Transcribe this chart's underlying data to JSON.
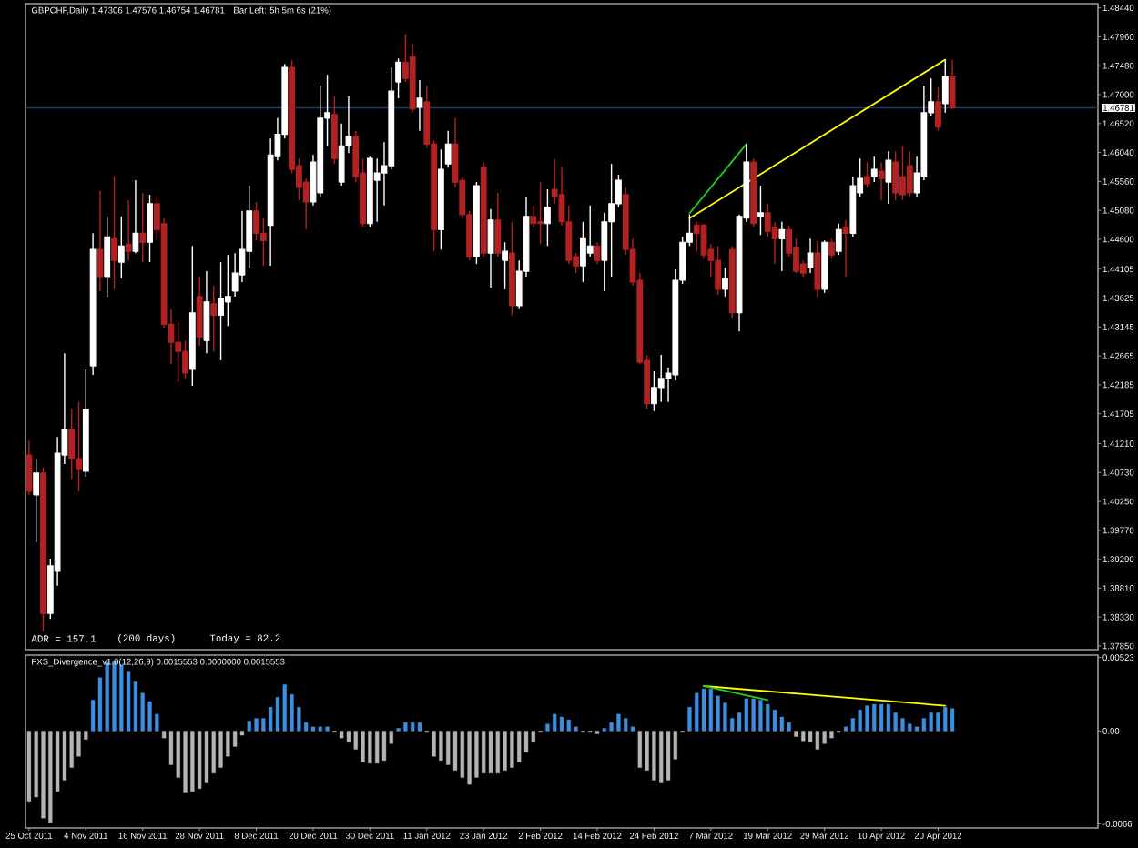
{
  "chart_data": [
    {
      "type": "candlestick",
      "title": "GBPCHF,Daily 1.47306 1.47576 1.46754 1.46781",
      "annotations": [
        "Bar Left: 5h 5m 6s (21%)",
        "ADR = 157.1",
        "(200 days)",
        "Today = 82.2"
      ],
      "categories": [
        null,
        null,
        null,
        null,
        null,
        null,
        null,
        null,
        null,
        null,
        null,
        null,
        null,
        null,
        null,
        null,
        null,
        null,
        null,
        null,
        null,
        null,
        null,
        null,
        null,
        null,
        null,
        null,
        null,
        null,
        null,
        null,
        null,
        null,
        null,
        null,
        null,
        null,
        null,
        null,
        null,
        null,
        null,
        null,
        null,
        null,
        null,
        null,
        null,
        null,
        null,
        null,
        null,
        null,
        null,
        null,
        null,
        null,
        null,
        null,
        null,
        null,
        null,
        null,
        null,
        null,
        null,
        null,
        null,
        null,
        null,
        null,
        null,
        null,
        null,
        null,
        null,
        null,
        null,
        null,
        null,
        null,
        null,
        null,
        null,
        null,
        null,
        null,
        null,
        null,
        null,
        null,
        null,
        null,
        null,
        null,
        null,
        null,
        null,
        null,
        null,
        null,
        null,
        null,
        null,
        null,
        null,
        null,
        null,
        null,
        null,
        null,
        null,
        null,
        null,
        null,
        null,
        null,
        null,
        null,
        null,
        null,
        null,
        null,
        null,
        null,
        null,
        null,
        null,
        null,
        null,
        null,
        null,
        null,
        null,
        null,
        null,
        null,
        null,
        null,
        null,
        null,
        null,
        null,
        null,
        null,
        null,
        null,
        null,
        null,
        null
      ],
      "ohlc": [
        [
          1.4102,
          1.4126,
          1.4036,
          1.4042
        ],
        [
          1.4036,
          1.4096,
          1.3957,
          1.4072
        ],
        [
          1.4072,
          1.4081,
          1.3809,
          1.3839
        ],
        [
          1.3839,
          1.393,
          1.383,
          1.3918
        ],
        [
          1.3909,
          1.4132,
          1.3885,
          1.4105
        ],
        [
          1.4102,
          1.4271,
          1.4087,
          1.4144
        ],
        [
          1.4144,
          1.4178,
          1.4063,
          1.4096
        ],
        [
          1.4096,
          1.419,
          1.4042,
          1.4078
        ],
        [
          1.4075,
          1.4244,
          1.4066,
          1.4178
        ],
        [
          1.425,
          1.447,
          1.4235,
          1.4443
        ],
        [
          1.4443,
          1.454,
          1.4374,
          1.4398
        ],
        [
          1.4398,
          1.4498,
          1.4365,
          1.4464
        ],
        [
          1.4461,
          1.4564,
          1.4377,
          1.4425
        ],
        [
          1.4422,
          1.4498,
          1.4395,
          1.4449
        ],
        [
          1.4452,
          1.4525,
          1.4425,
          1.444
        ],
        [
          1.444,
          1.4558,
          1.4437,
          1.447
        ],
        [
          1.447,
          1.4537,
          1.4422,
          1.4455
        ],
        [
          1.4455,
          1.4534,
          1.4422,
          1.4519
        ],
        [
          1.4519,
          1.4531,
          1.4458,
          1.4476
        ],
        [
          1.4486,
          1.4495,
          1.4313,
          1.4319
        ],
        [
          1.4319,
          1.4344,
          1.4253,
          1.4289
        ],
        [
          1.4289,
          1.4323,
          1.4223,
          1.4274
        ],
        [
          1.4274,
          1.4292,
          1.4229,
          1.4238
        ],
        [
          1.4244,
          1.4449,
          1.4217,
          1.4338
        ],
        [
          1.4365,
          1.4398,
          1.4283,
          1.4298
        ],
        [
          1.4292,
          1.4407,
          1.4271,
          1.4356
        ],
        [
          1.4353,
          1.4383,
          1.4274,
          1.4334
        ],
        [
          1.4334,
          1.4422,
          1.4259,
          1.4362
        ],
        [
          1.4356,
          1.4434,
          1.4316,
          1.4365
        ],
        [
          1.4374,
          1.4437,
          1.4365,
          1.4404
        ],
        [
          1.4401,
          1.4507,
          1.4389,
          1.4443
        ],
        [
          1.444,
          1.4549,
          1.4413,
          1.4507
        ],
        [
          1.4507,
          1.4522,
          1.4458,
          1.447
        ],
        [
          1.447,
          1.4495,
          1.4416,
          1.4458
        ],
        [
          1.4483,
          1.4627,
          1.4416,
          1.46
        ],
        [
          1.4597,
          1.4661,
          1.4591,
          1.4634
        ],
        [
          1.4634,
          1.4751,
          1.4627,
          1.4745
        ],
        [
          1.4745,
          1.4757,
          1.457,
          1.4576
        ],
        [
          1.4582,
          1.4594,
          1.4525,
          1.4546
        ],
        [
          1.4555,
          1.4561,
          1.4476,
          1.4522
        ],
        [
          1.4522,
          1.46,
          1.4516,
          1.4588
        ],
        [
          1.4537,
          1.4715,
          1.4531,
          1.4661
        ],
        [
          1.4661,
          1.4733,
          1.4615,
          1.467
        ],
        [
          1.4667,
          1.4697,
          1.4585,
          1.4594
        ],
        [
          1.4555,
          1.4652,
          1.4549,
          1.4615
        ],
        [
          1.4615,
          1.4697,
          1.4603,
          1.4631
        ],
        [
          1.4631,
          1.464,
          1.4555,
          1.4564
        ],
        [
          1.457,
          1.4594,
          1.448,
          1.4486
        ],
        [
          1.4486,
          1.4597,
          1.448,
          1.4594
        ],
        [
          1.4558,
          1.4594,
          1.4489,
          1.457
        ],
        [
          1.457,
          1.4621,
          1.4516,
          1.4582
        ],
        [
          1.4582,
          1.4745,
          1.4576,
          1.4706
        ],
        [
          1.4721,
          1.476,
          1.4694,
          1.4754
        ],
        [
          1.4754,
          1.48,
          1.4721,
          1.4727
        ],
        [
          1.4763,
          1.4785,
          1.467,
          1.4676
        ],
        [
          1.4679,
          1.4724,
          1.464,
          1.4694
        ],
        [
          1.4688,
          1.4715,
          1.4612,
          1.4618
        ],
        [
          1.4618,
          1.4624,
          1.444,
          1.4476
        ],
        [
          1.4476,
          1.4609,
          1.4443,
          1.4576
        ],
        [
          1.4585,
          1.464,
          1.4579,
          1.4618
        ],
        [
          1.4618,
          1.4661,
          1.4546,
          1.4555
        ],
        [
          1.4558,
          1.4564,
          1.4495,
          1.4501
        ],
        [
          1.4501,
          1.4507,
          1.4425,
          1.4431
        ],
        [
          1.4431,
          1.4555,
          1.4419,
          1.4549
        ],
        [
          1.4579,
          1.4588,
          1.4431,
          1.4437
        ],
        [
          1.4437,
          1.451,
          1.438,
          1.4492
        ],
        [
          1.4492,
          1.4537,
          1.4431,
          1.4437
        ],
        [
          1.4425,
          1.4455,
          1.4377,
          1.444
        ],
        [
          1.4437,
          1.4489,
          1.4334,
          1.435
        ],
        [
          1.435,
          1.4425,
          1.4344,
          1.4407
        ],
        [
          1.4407,
          1.4531,
          1.4398,
          1.4498
        ],
        [
          1.4498,
          1.4516,
          1.448,
          1.4486
        ],
        [
          1.4489,
          1.4555,
          1.4452,
          1.4486
        ],
        [
          1.4486,
          1.4543,
          1.4449,
          1.4513
        ],
        [
          1.4543,
          1.4594,
          1.4519,
          1.4531
        ],
        [
          1.4534,
          1.4579,
          1.4483,
          1.4489
        ],
        [
          1.4489,
          1.4516,
          1.4419,
          1.4425
        ],
        [
          1.4431,
          1.4437,
          1.4404,
          1.4416
        ],
        [
          1.4416,
          1.4489,
          1.4389,
          1.4461
        ],
        [
          1.4437,
          1.4516,
          1.4431,
          1.4449
        ],
        [
          1.4449,
          1.4455,
          1.4419,
          1.4425
        ],
        [
          1.4425,
          1.4504,
          1.4374,
          1.4489
        ],
        [
          1.4489,
          1.4585,
          1.4398,
          1.4519
        ],
        [
          1.4519,
          1.4567,
          1.4513,
          1.4558
        ],
        [
          1.4534,
          1.4546,
          1.4434,
          1.4443
        ],
        [
          1.4443,
          1.4461,
          1.4383,
          1.4389
        ],
        [
          1.4392,
          1.4404,
          1.4253,
          1.4256
        ],
        [
          1.4259,
          1.4268,
          1.4178,
          1.4187
        ],
        [
          1.4187,
          1.4241,
          1.4175,
          1.4214
        ],
        [
          1.4214,
          1.4268,
          1.419,
          1.4229
        ],
        [
          1.4229,
          1.4247,
          1.419,
          1.4238
        ],
        [
          1.4235,
          1.441,
          1.4226,
          1.4392
        ],
        [
          1.4392,
          1.4464,
          1.4386,
          1.4455
        ],
        [
          1.4455,
          1.4501,
          1.4449,
          1.447
        ],
        [
          1.4483,
          1.4489,
          1.444,
          1.447
        ],
        [
          1.4483,
          1.4486,
          1.4428,
          1.4434
        ],
        [
          1.4443,
          1.4452,
          1.4398,
          1.4425
        ],
        [
          1.4425,
          1.4449,
          1.4368,
          1.4377
        ],
        [
          1.4377,
          1.4413,
          1.4365,
          1.4395
        ],
        [
          1.4443,
          1.4449,
          1.4329,
          1.4338
        ],
        [
          1.4338,
          1.4501,
          1.4307,
          1.4498
        ],
        [
          1.4495,
          1.4618,
          1.4489,
          1.4588
        ],
        [
          1.4588,
          1.4594,
          1.448,
          1.4486
        ],
        [
          1.4498,
          1.4549,
          1.4467,
          1.4504
        ],
        [
          1.4504,
          1.4519,
          1.4464,
          1.4473
        ],
        [
          1.448,
          1.4489,
          1.4419,
          1.4461
        ],
        [
          1.4461,
          1.4489,
          1.4407,
          1.4476
        ],
        [
          1.4476,
          1.4483,
          1.4431,
          1.4437
        ],
        [
          1.4446,
          1.4461,
          1.4404,
          1.4407
        ],
        [
          1.4419,
          1.4425,
          1.4398,
          1.4404
        ],
        [
          1.4413,
          1.4461,
          1.4404,
          1.4437
        ],
        [
          1.4437,
          1.4458,
          1.4365,
          1.4377
        ],
        [
          1.4377,
          1.4458,
          1.4371,
          1.4455
        ],
        [
          1.4455,
          1.4461,
          1.4428,
          1.4434
        ],
        [
          1.444,
          1.4486,
          1.4434,
          1.4476
        ],
        [
          1.448,
          1.4492,
          1.4398,
          1.447
        ],
        [
          1.447,
          1.4564,
          1.4464,
          1.4549
        ],
        [
          1.4537,
          1.4594,
          1.4531,
          1.4561
        ],
        [
          1.4564,
          1.4588,
          1.4546,
          1.4552
        ],
        [
          1.4564,
          1.4597,
          1.4555,
          1.4576
        ],
        [
          1.4573,
          1.4588,
          1.4525,
          1.4561
        ],
        [
          1.4555,
          1.4606,
          1.4519,
          1.4591
        ],
        [
          1.4588,
          1.4606,
          1.4525,
          1.4537
        ],
        [
          1.4564,
          1.4615,
          1.4525,
          1.4534
        ],
        [
          1.4582,
          1.4606,
          1.4531,
          1.4537
        ],
        [
          1.4537,
          1.4597,
          1.4531,
          1.457
        ],
        [
          1.4564,
          1.4715,
          1.4558,
          1.467
        ],
        [
          1.467,
          1.4727,
          1.4664,
          1.4688
        ],
        [
          1.4688,
          1.4712,
          1.464,
          1.4646
        ],
        [
          1.4685,
          1.4757,
          1.467,
          1.473
        ],
        [
          1.47306,
          1.47576,
          1.46754,
          1.46781
        ],
        null,
        null,
        null,
        null,
        null,
        null,
        null,
        null,
        null,
        null,
        null,
        null,
        null,
        null,
        null,
        null,
        null,
        null,
        null,
        null
      ],
      "colors": [
        "#b22222",
        "#ffffff",
        "#b22222",
        "#ffffff",
        "#ffffff",
        "#ffffff",
        "#b22222",
        "#b22222",
        "#ffffff",
        "#ffffff",
        "#b22222",
        "#ffffff",
        "#b22222",
        "#ffffff",
        "#b22222",
        "#ffffff",
        "#b22222",
        "#ffffff",
        "#b22222",
        "#b22222",
        "#b22222",
        "#b22222",
        "#b22222",
        "#ffffff",
        "#b22222",
        "#ffffff",
        "#b22222",
        "#ffffff",
        "#ffffff",
        "#ffffff",
        "#ffffff",
        "#ffffff",
        "#b22222",
        "#b22222",
        "#ffffff",
        "#ffffff",
        "#ffffff",
        "#b22222",
        "#b22222",
        "#b22222",
        "#ffffff",
        "#ffffff",
        "#ffffff",
        "#b22222",
        "#ffffff",
        "#ffffff",
        "#b22222",
        "#b22222",
        "#ffffff",
        "#ffffff",
        "#ffffff",
        "#ffffff",
        "#ffffff",
        "#b22222",
        "#b22222",
        "#ffffff",
        "#b22222",
        "#b22222",
        "#ffffff",
        "#ffffff",
        "#b22222",
        "#b22222",
        "#b22222",
        "#ffffff",
        "#b22222",
        "#ffffff",
        "#b22222",
        "#ffffff",
        "#b22222",
        "#ffffff",
        "#ffffff",
        "#b22222",
        "#b22222",
        "#ffffff",
        "#b22222",
        "#b22222",
        "#b22222",
        "#b22222",
        "#ffffff",
        "#ffffff",
        "#b22222",
        "#ffffff",
        "#ffffff",
        "#ffffff",
        "#b22222",
        "#b22222",
        "#b22222",
        "#b22222",
        "#ffffff",
        "#ffffff",
        "#ffffff",
        "#ffffff",
        "#ffffff",
        "#ffffff",
        "#b22222",
        "#b22222",
        "#b22222",
        "#b22222",
        "#ffffff",
        "#b22222",
        "#ffffff",
        "#ffffff",
        "#b22222",
        "#ffffff",
        "#b22222",
        "#b22222",
        "#ffffff",
        "#b22222",
        "#b22222",
        "#b22222",
        "#ffffff",
        "#b22222",
        "#ffffff",
        "#b22222",
        "#ffffff",
        "#b22222",
        "#ffffff",
        "#ffffff",
        "#b22222",
        "#ffffff",
        "#b22222",
        "#ffffff",
        "#b22222",
        "#b22222",
        "#b22222",
        "#ffffff",
        "#ffffff",
        "#ffffff",
        "#b22222",
        "#ffffff",
        "#b22222",
        null,
        null,
        null,
        null,
        null,
        null,
        null,
        null,
        null,
        null,
        null,
        null,
        null,
        null,
        null,
        null,
        null,
        null,
        null,
        null
      ],
      "ylim": [
        1.3779,
        1.4851
      ],
      "yticks": [
        {
          "value": 1.4844,
          "label": "1.48440"
        },
        {
          "value": 1.4796,
          "label": "1.47960"
        },
        {
          "value": 1.4748,
          "label": "1.47480"
        },
        {
          "value": 1.47,
          "label": "1.47000"
        },
        {
          "value": 1.4652,
          "label": "1.46520"
        },
        {
          "value": 1.4604,
          "label": "1.46040"
        },
        {
          "value": 1.4556,
          "label": "1.45560"
        },
        {
          "value": 1.4508,
          "label": "1.45080"
        },
        {
          "value": 1.446,
          "label": "1.44600"
        },
        1.44105,
        1.43625,
        1.43145,
        1.42665,
        1.42185,
        1.41705,
        {
          "value": 1.4121,
          "label": "1.41210"
        },
        {
          "value": 1.4073,
          "label": "1.40730"
        },
        {
          "value": 1.4025,
          "label": "1.40250"
        },
        {
          "value": 1.3977,
          "label": "1.39770"
        },
        {
          "value": 1.3929,
          "label": "1.39290"
        },
        {
          "value": 1.3881,
          "label": "1.38810"
        },
        {
          "value": 1.3833,
          "label": "1.38330"
        },
        {
          "value": 1.3785,
          "label": "1.37850"
        }
      ],
      "tick_labels": "y",
      "ref_lines": [
        {
          "axis": "y",
          "value": 1.46781,
          "label": "1.46781",
          "color": "#1f3b6b"
        }
      ],
      "series": [
        {
          "type": "line",
          "color": "#ffff00",
          "values": [
            null,
            null,
            null,
            null,
            null,
            null,
            null,
            null,
            null,
            null,
            null,
            null,
            null,
            null,
            null,
            null,
            null,
            null,
            null,
            null,
            null,
            null,
            null,
            null,
            null,
            null,
            null,
            null,
            null,
            null,
            null,
            null,
            null,
            null,
            null,
            null,
            null,
            null,
            null,
            null,
            null,
            null,
            null,
            null,
            null,
            null,
            null,
            null,
            null,
            null,
            null,
            null,
            null,
            null,
            null,
            null,
            null,
            null,
            null,
            null,
            null,
            null,
            null,
            null,
            null,
            null,
            null,
            null,
            null,
            null,
            null,
            null,
            null,
            null,
            null,
            null,
            null,
            null,
            null,
            null,
            null,
            null,
            null,
            null,
            null,
            null,
            null,
            null,
            null,
            null,
            null,
            null,
            null,
            1.4495,
            null,
            null,
            null,
            null,
            null,
            null,
            null,
            null,
            null,
            null,
            null,
            null,
            null,
            null,
            null,
            null,
            null,
            null,
            null,
            null,
            null,
            null,
            null,
            null,
            null,
            null,
            null,
            null,
            null,
            null,
            null,
            null,
            null,
            null,
            null,
            1.4758,
            null,
            null,
            null,
            null,
            null,
            null,
            null,
            null,
            null,
            null,
            null,
            null,
            null,
            null,
            null,
            null,
            null,
            null,
            null,
            null,
            null
          ]
        },
        {
          "type": "line",
          "color": "#20d020",
          "values": [
            null,
            null,
            null,
            null,
            null,
            null,
            null,
            null,
            null,
            null,
            null,
            null,
            null,
            null,
            null,
            null,
            null,
            null,
            null,
            null,
            null,
            null,
            null,
            null,
            null,
            null,
            null,
            null,
            null,
            null,
            null,
            null,
            null,
            null,
            null,
            null,
            null,
            null,
            null,
            null,
            null,
            null,
            null,
            null,
            null,
            null,
            null,
            null,
            null,
            null,
            null,
            null,
            null,
            null,
            null,
            null,
            null,
            null,
            null,
            null,
            null,
            null,
            null,
            null,
            null,
            null,
            null,
            null,
            null,
            null,
            null,
            null,
            null,
            null,
            null,
            null,
            null,
            null,
            null,
            null,
            null,
            null,
            null,
            null,
            null,
            null,
            null,
            null,
            null,
            null,
            null,
            null,
            null,
            1.4503,
            null,
            null,
            null,
            null,
            null,
            null,
            null,
            1.4618,
            null,
            null,
            null,
            null,
            null,
            null,
            null,
            null,
            null,
            null,
            null,
            null,
            null,
            null,
            null,
            null,
            null,
            null,
            null,
            null,
            null,
            null,
            null,
            null,
            null,
            null,
            null,
            null,
            null,
            null,
            null,
            null,
            null,
            null,
            null,
            null,
            null,
            null,
            null,
            null,
            null,
            null,
            null,
            null,
            null,
            null,
            null,
            null,
            null
          ]
        }
      ]
    },
    {
      "type": "bar",
      "title": "FXS_Divergence_v1.0(12,26,9) 0.0015553 0.0000000 0.0015553",
      "categories": [
        "25 Oct 2011",
        null,
        null,
        null,
        null,
        null,
        null,
        null,
        "4 Nov 2011",
        null,
        null,
        null,
        null,
        null,
        null,
        null,
        "16 Nov 2011",
        null,
        null,
        null,
        null,
        null,
        null,
        null,
        "28 Nov 2011",
        null,
        null,
        null,
        null,
        null,
        null,
        null,
        "8 Dec 2011",
        null,
        null,
        null,
        null,
        null,
        null,
        null,
        "20 Dec 2011",
        null,
        null,
        null,
        null,
        null,
        null,
        null,
        "30 Dec 2011",
        null,
        null,
        null,
        null,
        null,
        null,
        null,
        "11 Jan 2012",
        null,
        null,
        null,
        null,
        null,
        null,
        null,
        "23 Jan 2012",
        null,
        null,
        null,
        null,
        null,
        null,
        null,
        "2 Feb 2012",
        null,
        null,
        null,
        null,
        null,
        null,
        null,
        "14 Feb 2012",
        null,
        null,
        null,
        null,
        null,
        null,
        null,
        "24 Feb 2012",
        null,
        null,
        null,
        null,
        null,
        null,
        null,
        "7 Mar 2012",
        null,
        null,
        null,
        null,
        null,
        null,
        null,
        "19 Mar 2012",
        null,
        null,
        null,
        null,
        null,
        null,
        null,
        "29 Mar 2012",
        null,
        null,
        null,
        null,
        null,
        null,
        null,
        "10 Apr 2012",
        null,
        null,
        null,
        null,
        null,
        null,
        null,
        "20 Apr 2012",
        null,
        null,
        null,
        null,
        null,
        null,
        null,
        null,
        null,
        null,
        null,
        null,
        null,
        null,
        null,
        null,
        null,
        null,
        null,
        null,
        null,
        null
      ],
      "ylim": [
        -0.0069,
        0.0054
      ],
      "yticks": [
        0.00523,
        {
          "value": 0,
          "label": "0.00"
        },
        -0.0066
      ],
      "series": [
        {
          "type": "bar",
          "values": [
            -0.005,
            -0.0047,
            -0.0062,
            -0.0065,
            -0.0043,
            -0.0035,
            -0.0026,
            -0.0018,
            -0.0006,
            0.0022,
            0.0038,
            0.0049,
            0.005,
            0.0047,
            0.0042,
            0.0035,
            0.0027,
            0.0021,
            0.0012,
            -0.0005,
            -0.0024,
            -0.0033,
            -0.0044,
            -0.0043,
            -0.0041,
            -0.0037,
            -0.003,
            -0.0026,
            -0.0018,
            -0.0011,
            -0.0003,
            0.0007,
            0.0009,
            0.0009,
            0.0017,
            0.0024,
            0.0033,
            0.0026,
            0.0017,
            0.0006,
            0.0003,
            0.0003,
            0.0003,
            -0.0001,
            -0.0005,
            -0.0008,
            -0.0013,
            -0.0022,
            -0.0023,
            -0.0023,
            -0.0021,
            -0.0009,
            0.0002,
            0.0006,
            0.0006,
            0.0006,
            -0.0001,
            -0.0018,
            -0.0021,
            -0.0024,
            -0.0028,
            -0.0033,
            -0.0038,
            -0.0033,
            -0.003,
            -0.003,
            -0.003,
            -0.0028,
            -0.0026,
            -0.0022,
            -0.0015,
            -0.0008,
            -0.0001,
            0.0005,
            0.0012,
            0.001,
            0.0008,
            0.0003,
            -0.0001,
            -0.0001,
            -0.0002,
            0.0002,
            0.0006,
            0.0012,
            0.0009,
            0.0003,
            -0.0026,
            -0.0028,
            -0.0035,
            -0.0037,
            -0.0035,
            -0.002,
            -0.0001,
            0.0017,
            0.0027,
            0.003,
            0.003,
            0.0025,
            0.002,
            0.0009,
            0.0013,
            0.0023,
            0.0023,
            0.0022,
            0.0019,
            0.0015,
            0.001,
            0.0006,
            -0.0004,
            -0.0007,
            -0.0008,
            -0.0013,
            -0.0009,
            -0.0005,
            -0.0001,
            0.0003,
            0.0009,
            0.0015,
            0.0018,
            0.0019,
            0.0019,
            0.0019,
            0.0013,
            0.0009,
            0.0005,
            0.0003,
            0.0009,
            0.0013,
            0.0013,
            0.0017,
            0.0016,
            null,
            null,
            null,
            null,
            null,
            null,
            null,
            null,
            null,
            null,
            null,
            null,
            null,
            null,
            null,
            null,
            null,
            null,
            null,
            null
          ],
          "colors": [
            "#b4b4b4",
            "#b4b4b4",
            "#b4b4b4",
            "#b4b4b4",
            "#b4b4b4",
            "#b4b4b4",
            "#b4b4b4",
            "#b4b4b4",
            "#b4b4b4",
            "#3c8ee0",
            "#3c8ee0",
            "#3c8ee0",
            "#3c8ee0",
            "#3c8ee0",
            "#3c8ee0",
            "#3c8ee0",
            "#3c8ee0",
            "#3c8ee0",
            "#3c8ee0",
            "#b4b4b4",
            "#b4b4b4",
            "#b4b4b4",
            "#b4b4b4",
            "#b4b4b4",
            "#b4b4b4",
            "#b4b4b4",
            "#b4b4b4",
            "#b4b4b4",
            "#b4b4b4",
            "#b4b4b4",
            "#b4b4b4",
            "#3c8ee0",
            "#3c8ee0",
            "#3c8ee0",
            "#3c8ee0",
            "#3c8ee0",
            "#3c8ee0",
            "#3c8ee0",
            "#3c8ee0",
            "#3c8ee0",
            "#3c8ee0",
            "#3c8ee0",
            "#3c8ee0",
            "#b4b4b4",
            "#b4b4b4",
            "#b4b4b4",
            "#b4b4b4",
            "#b4b4b4",
            "#b4b4b4",
            "#b4b4b4",
            "#b4b4b4",
            "#b4b4b4",
            "#3c8ee0",
            "#3c8ee0",
            "#3c8ee0",
            "#3c8ee0",
            "#b4b4b4",
            "#b4b4b4",
            "#b4b4b4",
            "#b4b4b4",
            "#b4b4b4",
            "#b4b4b4",
            "#b4b4b4",
            "#b4b4b4",
            "#b4b4b4",
            "#b4b4b4",
            "#b4b4b4",
            "#b4b4b4",
            "#b4b4b4",
            "#b4b4b4",
            "#b4b4b4",
            "#b4b4b4",
            "#b4b4b4",
            "#3c8ee0",
            "#3c8ee0",
            "#3c8ee0",
            "#3c8ee0",
            "#3c8ee0",
            "#b4b4b4",
            "#b4b4b4",
            "#b4b4b4",
            "#3c8ee0",
            "#3c8ee0",
            "#3c8ee0",
            "#3c8ee0",
            "#3c8ee0",
            "#b4b4b4",
            "#b4b4b4",
            "#b4b4b4",
            "#b4b4b4",
            "#b4b4b4",
            "#b4b4b4",
            "#b4b4b4",
            "#3c8ee0",
            "#3c8ee0",
            "#3c8ee0",
            "#3c8ee0",
            "#3c8ee0",
            "#3c8ee0",
            "#3c8ee0",
            "#3c8ee0",
            "#3c8ee0",
            "#3c8ee0",
            "#3c8ee0",
            "#3c8ee0",
            "#3c8ee0",
            "#3c8ee0",
            "#3c8ee0",
            "#b4b4b4",
            "#b4b4b4",
            "#b4b4b4",
            "#b4b4b4",
            "#b4b4b4",
            "#b4b4b4",
            "#b4b4b4",
            "#3c8ee0",
            "#3c8ee0",
            "#3c8ee0",
            "#3c8ee0",
            "#3c8ee0",
            "#3c8ee0",
            "#3c8ee0",
            "#3c8ee0",
            "#3c8ee0",
            "#3c8ee0",
            "#3c8ee0",
            "#3c8ee0",
            "#3c8ee0",
            "#3c8ee0",
            "#3c8ee0",
            "#3c8ee0",
            null,
            null,
            null,
            null,
            null,
            null,
            null,
            null,
            null,
            null,
            null,
            null,
            null,
            null,
            null,
            null,
            null,
            null,
            null,
            null
          ]
        },
        {
          "type": "line",
          "color": "#ffff00",
          "values": [
            null,
            null,
            null,
            null,
            null,
            null,
            null,
            null,
            null,
            null,
            null,
            null,
            null,
            null,
            null,
            null,
            null,
            null,
            null,
            null,
            null,
            null,
            null,
            null,
            null,
            null,
            null,
            null,
            null,
            null,
            null,
            null,
            null,
            null,
            null,
            null,
            null,
            null,
            null,
            null,
            null,
            null,
            null,
            null,
            null,
            null,
            null,
            null,
            null,
            null,
            null,
            null,
            null,
            null,
            null,
            null,
            null,
            null,
            null,
            null,
            null,
            null,
            null,
            null,
            null,
            null,
            null,
            null,
            null,
            null,
            null,
            null,
            null,
            null,
            null,
            null,
            null,
            null,
            null,
            null,
            null,
            null,
            null,
            null,
            null,
            null,
            null,
            null,
            null,
            null,
            null,
            null,
            null,
            null,
            null,
            0.0032,
            null,
            null,
            null,
            null,
            null,
            null,
            null,
            null,
            null,
            null,
            null,
            null,
            null,
            null,
            null,
            null,
            null,
            null,
            null,
            null,
            null,
            null,
            null,
            null,
            null,
            null,
            null,
            null,
            null,
            null,
            null,
            null,
            null,
            0.0018,
            null,
            null,
            null,
            null,
            null,
            null,
            null,
            null,
            null,
            null,
            null,
            null,
            null,
            null,
            null,
            null,
            null,
            null,
            null,
            null,
            null
          ]
        },
        {
          "type": "line",
          "color": "#20d020",
          "values": [
            null,
            null,
            null,
            null,
            null,
            null,
            null,
            null,
            null,
            null,
            null,
            null,
            null,
            null,
            null,
            null,
            null,
            null,
            null,
            null,
            null,
            null,
            null,
            null,
            null,
            null,
            null,
            null,
            null,
            null,
            null,
            null,
            null,
            null,
            null,
            null,
            null,
            null,
            null,
            null,
            null,
            null,
            null,
            null,
            null,
            null,
            null,
            null,
            null,
            null,
            null,
            null,
            null,
            null,
            null,
            null,
            null,
            null,
            null,
            null,
            null,
            null,
            null,
            null,
            null,
            null,
            null,
            null,
            null,
            null,
            null,
            null,
            null,
            null,
            null,
            null,
            null,
            null,
            null,
            null,
            null,
            null,
            null,
            null,
            null,
            null,
            null,
            null,
            null,
            null,
            null,
            null,
            null,
            null,
            null,
            0.0032,
            null,
            null,
            null,
            null,
            null,
            null,
            null,
            null,
            0.0022,
            null,
            null,
            null,
            null,
            null,
            null,
            null,
            null,
            null,
            null,
            null,
            null,
            null,
            null,
            null,
            null,
            null,
            null,
            null,
            null,
            null,
            null,
            null,
            null,
            null,
            null,
            null,
            null,
            null,
            null,
            null,
            null,
            null,
            null,
            null,
            null,
            null,
            null,
            null,
            null,
            null,
            null,
            null,
            null,
            null,
            null
          ]
        }
      ]
    }
  ]
}
